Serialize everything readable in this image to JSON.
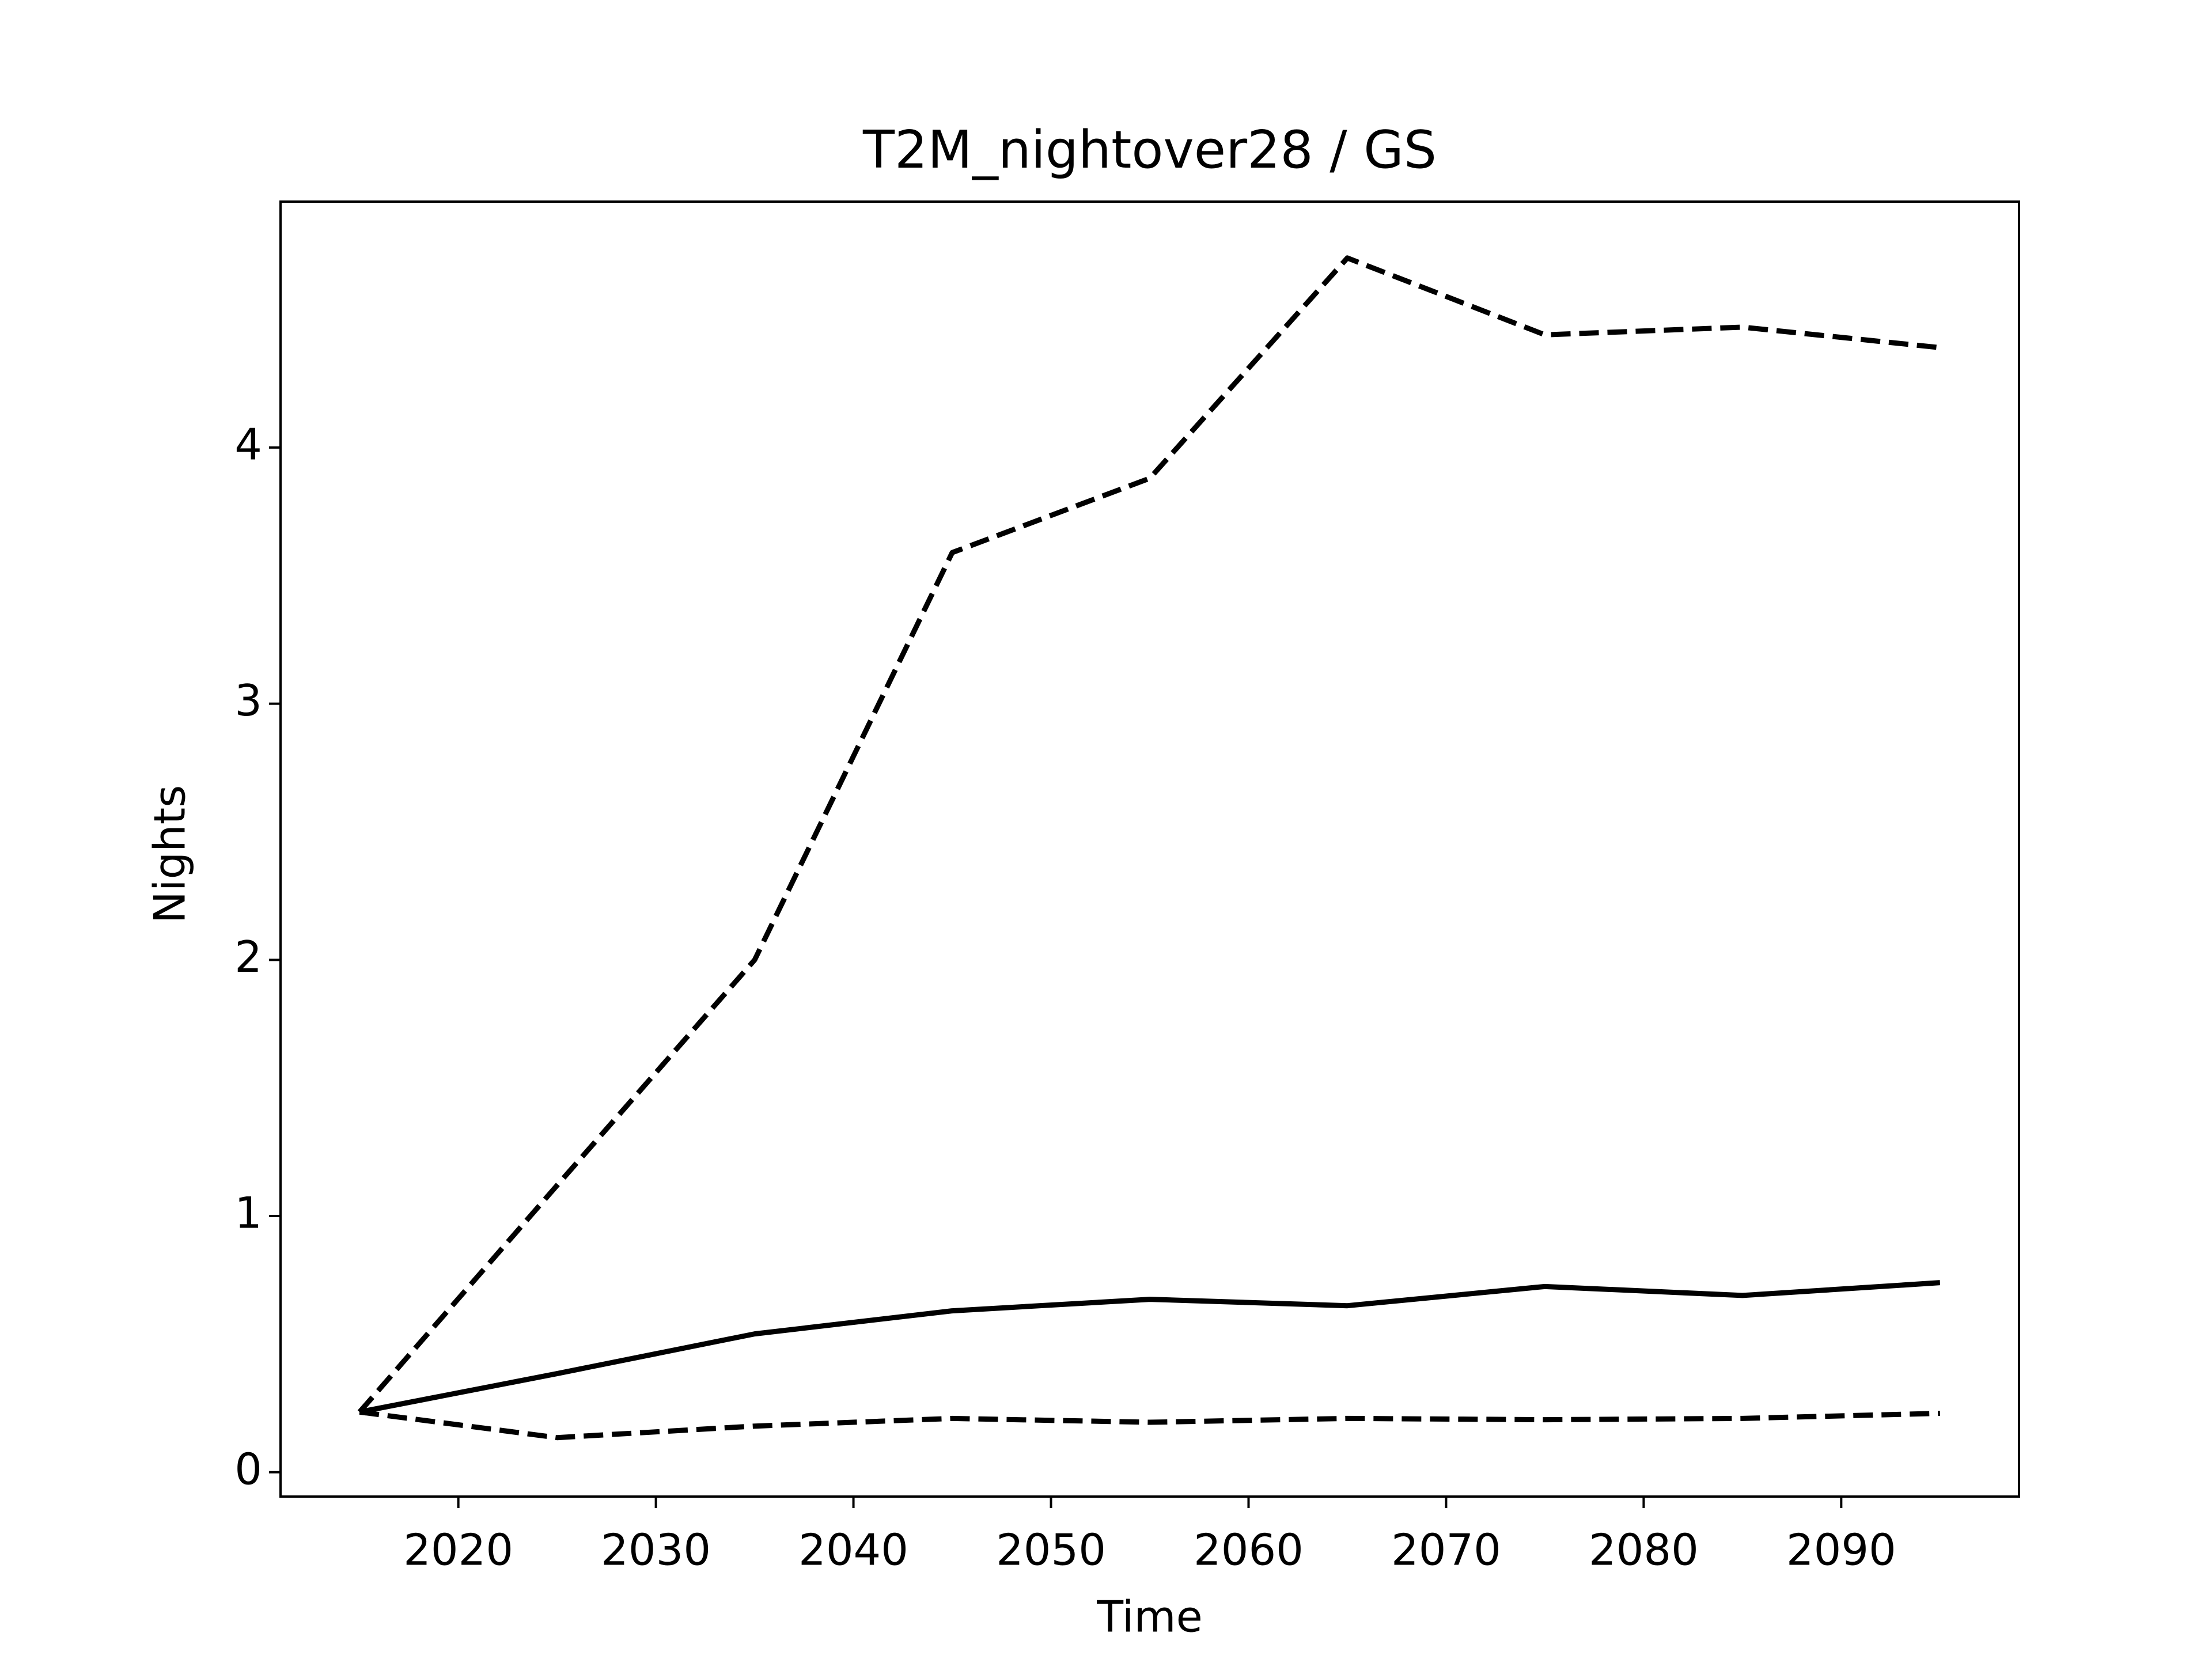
{
  "chart_data": {
    "type": "line",
    "title": "T2M_nightover28 / GS",
    "x_label": "Time",
    "y_label": "Nights",
    "x": [
      2015,
      2025,
      2035,
      2045,
      2055,
      2065,
      2075,
      2085,
      2095
    ],
    "series": [
      {
        "color": "#000000",
        "dashed": false,
        "values": [
          0.235,
          0.385,
          0.54,
          0.63,
          0.675,
          0.65,
          0.725,
          0.69,
          0.74
        ]
      },
      {
        "color": "#000000",
        "dashed": true,
        "values": [
          0.235,
          1.12,
          2.0,
          3.59,
          3.88,
          4.74,
          4.44,
          4.47,
          4.39
        ]
      },
      {
        "color": "#000000",
        "dashed": true,
        "values": [
          0.235,
          0.135,
          0.18,
          0.21,
          0.195,
          0.21,
          0.205,
          0.21,
          0.23
        ]
      }
    ],
    "xlim": [
      2011,
      2099
    ],
    "xticks": [
      2020,
      2030,
      2040,
      2050,
      2060,
      2070,
      2080,
      2090
    ],
    "ylim": [
      -0.095,
      4.96
    ],
    "yticks": [
      0,
      1,
      2,
      3,
      4
    ],
    "grid": false
  }
}
